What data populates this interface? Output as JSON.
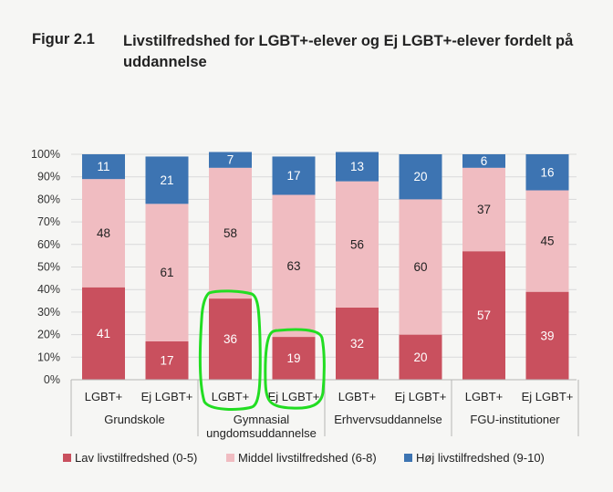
{
  "figure": {
    "number": "Figur 2.1",
    "title": "Livstilfredshed for LGBT+-elever og Ej LGBT+-elever fordelt på uddannelse"
  },
  "chart_data": {
    "type": "bar",
    "stacked": true,
    "title": "Livstilfredshed for LGBT+-elever og Ej LGBT+-elever fordelt på uddannelse",
    "xlabel": "",
    "ylabel": "",
    "ylim": [
      0,
      100
    ],
    "yticks": [
      "0%",
      "10%",
      "20%",
      "30%",
      "40%",
      "50%",
      "60%",
      "70%",
      "80%",
      "90%",
      "100%"
    ],
    "grid": true,
    "legend_position": "bottom",
    "categories": [
      "LGBT+",
      "Ej LGBT+",
      "LGBT+",
      "Ej LGBT+",
      "LGBT+",
      "Ej LGBT+",
      "LGBT+",
      "Ej LGBT+"
    ],
    "groups": [
      {
        "lines": [
          "Grundskole"
        ]
      },
      {
        "lines": [
          "Gymnasial",
          "ungdomsuddannelse"
        ]
      },
      {
        "lines": [
          "Erhvervsuddannelse"
        ]
      },
      {
        "lines": [
          "FGU-institutioner"
        ]
      }
    ],
    "series": [
      {
        "name": "Lav livstilfredshed (0-5)",
        "color": "#c9505e",
        "label_color": "#ffffff",
        "values": [
          41,
          17,
          36,
          19,
          32,
          20,
          57,
          39
        ]
      },
      {
        "name": "Middel livstilfredshed (6-8)",
        "color": "#f0bcc1",
        "label_color": "#222222",
        "values": [
          48,
          61,
          58,
          63,
          56,
          60,
          37,
          45
        ]
      },
      {
        "name": "Høj livstilfredshed (9-10)",
        "color": "#3d74b2",
        "label_color": "#ffffff",
        "values": [
          11,
          21,
          7,
          17,
          13,
          20,
          6,
          16
        ]
      }
    ],
    "annotations": [
      {
        "type": "hand-drawn-circle",
        "color": "#22dd22",
        "targets": [
          2,
          3
        ]
      }
    ]
  }
}
